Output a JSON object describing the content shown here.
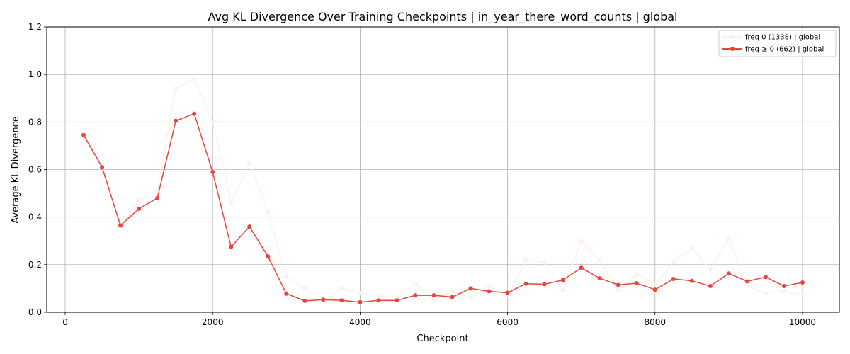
{
  "chart_data": {
    "type": "line",
    "title": "Avg KL Divergence Over Training Checkpoints | in_year_there_word_counts | global",
    "xlabel": "Checkpoint",
    "ylabel": "Average KL Divergence",
    "xlim": [
      -250,
      10500
    ],
    "ylim": [
      0,
      1.2
    ],
    "xticks": [
      0,
      2000,
      4000,
      6000,
      8000,
      10000
    ],
    "yticks": [
      0.0,
      0.2,
      0.4,
      0.6,
      0.8,
      1.0,
      1.2
    ],
    "grid": true,
    "legend_position": "top-right",
    "x": [
      250,
      500,
      750,
      1000,
      1250,
      1500,
      1750,
      2000,
      2250,
      2500,
      2750,
      3000,
      3250,
      3500,
      3750,
      4000,
      4250,
      4500,
      4750,
      5000,
      5250,
      5500,
      5750,
      6000,
      6250,
      6500,
      6750,
      7000,
      7250,
      7500,
      7750,
      8000,
      8250,
      8500,
      8750,
      9000,
      9250,
      9500,
      9750,
      10000
    ],
    "series": [
      {
        "name": "freq 0 (1338) | global",
        "color": "#fdf0ea",
        "values": [
          0.75,
          0.62,
          0.36,
          0.47,
          0.52,
          0.94,
          0.98,
          0.8,
          0.46,
          0.63,
          0.42,
          0.15,
          0.1,
          0.05,
          0.1,
          0.08,
          0.07,
          0.06,
          0.12,
          0.05,
          0.09,
          0.06,
          0.11,
          0.07,
          0.22,
          0.21,
          0.09,
          0.3,
          0.22,
          0.09,
          0.16,
          0.12,
          0.21,
          0.27,
          0.18,
          0.31,
          0.11,
          0.08,
          0.09,
          0.07
        ]
      },
      {
        "name": "freq ≥ 0 (662) | global",
        "color": "#e8453c",
        "values": [
          0.745,
          0.61,
          0.365,
          0.435,
          0.48,
          0.805,
          0.835,
          0.59,
          0.275,
          0.36,
          0.235,
          0.078,
          0.048,
          0.053,
          0.05,
          0.042,
          0.05,
          0.05,
          0.071,
          0.071,
          0.064,
          0.1,
          0.088,
          0.082,
          0.12,
          0.118,
          0.135,
          0.187,
          0.143,
          0.115,
          0.122,
          0.095,
          0.14,
          0.132,
          0.11,
          0.163,
          0.13,
          0.148,
          0.11,
          0.125
        ]
      }
    ]
  }
}
